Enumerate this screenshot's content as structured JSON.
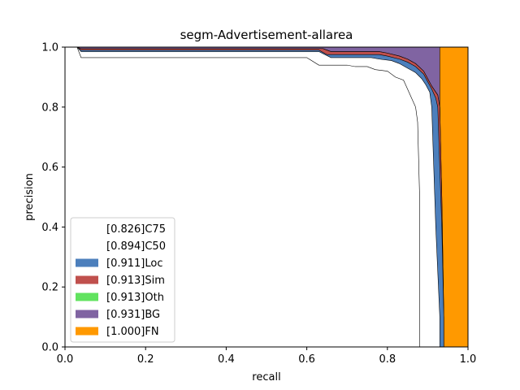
{
  "chart_data": {
    "type": "area",
    "title": "segm-Advertisement-allarea",
    "xlabel": "recall",
    "ylabel": "precision",
    "xlim": [
      0.0,
      1.0
    ],
    "ylim": [
      0.0,
      1.0
    ],
    "xticks": [
      "0.0",
      "0.2",
      "0.4",
      "0.6",
      "0.8",
      "1.0"
    ],
    "yticks": [
      "0.0",
      "0.2",
      "0.4",
      "0.6",
      "0.8",
      "1.0"
    ],
    "grid": false,
    "legend_position": "lower-left",
    "series": [
      {
        "name": "[0.826]C75",
        "color": "#ffffff",
        "x": [
          0.0,
          0.03,
          0.04,
          0.6,
          0.63,
          0.7,
          0.72,
          0.75,
          0.77,
          0.8,
          0.82,
          0.84,
          0.85,
          0.86,
          0.87,
          0.875,
          0.88,
          0.88,
          1.0
        ],
        "y": [
          1.0,
          1.0,
          0.965,
          0.965,
          0.94,
          0.94,
          0.935,
          0.935,
          0.925,
          0.92,
          0.9,
          0.89,
          0.86,
          0.83,
          0.8,
          0.75,
          0.5,
          0.0,
          0.0
        ]
      },
      {
        "name": "[0.894]C50",
        "color": "#ffffff",
        "x": [
          0.0,
          0.03,
          0.04,
          0.63,
          0.66,
          0.76,
          0.78,
          0.81,
          0.83,
          0.85,
          0.87,
          0.885,
          0.895,
          0.905,
          0.91,
          0.915,
          0.92,
          0.93,
          0.93,
          1.0
        ],
        "y": [
          1.0,
          1.0,
          0.985,
          0.985,
          0.965,
          0.965,
          0.96,
          0.955,
          0.945,
          0.93,
          0.915,
          0.895,
          0.875,
          0.85,
          0.8,
          0.6,
          0.4,
          0.1,
          0.0,
          0.0
        ]
      },
      {
        "name": "[0.911]Loc",
        "color": "#4c7fbc",
        "x": [
          0.0,
          0.03,
          0.04,
          0.63,
          0.65,
          0.78,
          0.8,
          0.83,
          0.85,
          0.87,
          0.89,
          0.9,
          0.91,
          0.92,
          0.925,
          0.93,
          0.935,
          0.94,
          0.94,
          1.0
        ],
        "y": [
          1.0,
          1.0,
          0.99,
          0.99,
          0.975,
          0.975,
          0.97,
          0.96,
          0.95,
          0.935,
          0.91,
          0.885,
          0.86,
          0.83,
          0.8,
          0.6,
          0.4,
          0.1,
          0.0,
          0.0
        ]
      },
      {
        "name": "[0.913]Sim",
        "color": "#c0504d",
        "x": [
          0.0,
          0.03,
          0.04,
          0.64,
          0.66,
          0.78,
          0.8,
          0.83,
          0.85,
          0.87,
          0.89,
          0.9,
          0.91,
          0.925,
          0.93,
          0.935,
          0.94,
          0.94,
          1.0
        ],
        "y": [
          1.0,
          1.0,
          0.995,
          0.995,
          0.985,
          0.985,
          0.98,
          0.97,
          0.96,
          0.945,
          0.92,
          0.895,
          0.87,
          0.84,
          0.8,
          0.5,
          0.1,
          0.0,
          0.0
        ]
      },
      {
        "name": "[0.913]Oth",
        "color": "#61e35f",
        "x": [
          0.0,
          0.03,
          0.04,
          0.64,
          0.66,
          0.78,
          0.8,
          0.83,
          0.85,
          0.87,
          0.89,
          0.9,
          0.91,
          0.925,
          0.93,
          0.935,
          0.94,
          0.94,
          1.0
        ],
        "y": [
          1.0,
          1.0,
          0.995,
          0.995,
          0.985,
          0.985,
          0.98,
          0.97,
          0.96,
          0.945,
          0.92,
          0.895,
          0.87,
          0.84,
          0.8,
          0.5,
          0.1,
          0.0,
          0.0
        ]
      },
      {
        "name": "[0.931]BG",
        "color": "#8064a2",
        "x": [
          0.0,
          0.93,
          0.93,
          1.0
        ],
        "y": [
          1.0,
          1.0,
          0.0,
          0.0
        ]
      },
      {
        "name": "[1.000]FN",
        "color": "#ff9900",
        "x": [
          0.0,
          1.0,
          1.0
        ],
        "y": [
          1.0,
          1.0,
          0.0
        ]
      }
    ]
  }
}
